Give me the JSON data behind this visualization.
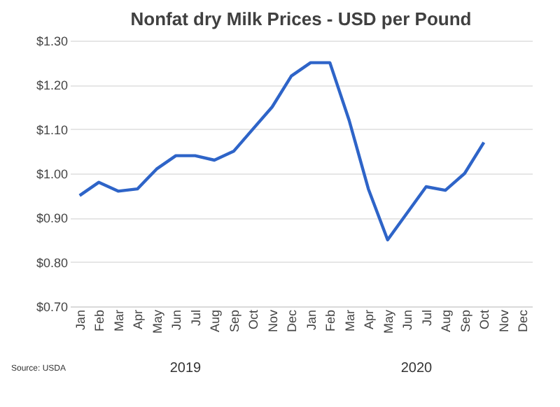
{
  "chart_data": {
    "type": "line",
    "title": "Nonfat dry Milk Prices - USD per Pound",
    "categories": [
      "Jan",
      "Feb",
      "Mar",
      "Apr",
      "May",
      "Jun",
      "Jul",
      "Aug",
      "Sep",
      "Oct",
      "Nov",
      "Dec",
      "Jan",
      "Feb",
      "Mar",
      "Apr",
      "May",
      "Jun",
      "Jul",
      "Aug",
      "Sep",
      "Oct",
      "Nov",
      "Dec"
    ],
    "series": [
      {
        "color": "#2e64c8",
        "values": [
          0.95,
          0.98,
          0.96,
          0.965,
          1.01,
          1.04,
          1.04,
          1.03,
          1.05,
          1.1,
          1.15,
          1.22,
          1.25,
          1.25,
          1.12,
          0.965,
          0.85,
          0.91,
          0.97,
          0.962,
          1.0,
          1.07,
          null,
          null
        ]
      }
    ],
    "ylim": [
      0.7,
      1.3
    ],
    "yticks": [
      {
        "value": 0.7,
        "label": "$0.70"
      },
      {
        "value": 0.8,
        "label": "$0.80"
      },
      {
        "value": 0.9,
        "label": "$0.90"
      },
      {
        "value": 1.0,
        "label": "$1.00"
      },
      {
        "value": 1.1,
        "label": "$1.10"
      },
      {
        "value": 1.2,
        "label": "$1.20"
      },
      {
        "value": 1.3,
        "label": "$1.30"
      }
    ],
    "grid": "y",
    "legend": false,
    "marker": "none",
    "line_style": "solid",
    "annotations": [
      "2019",
      "2020",
      "Source: USDA"
    ]
  }
}
